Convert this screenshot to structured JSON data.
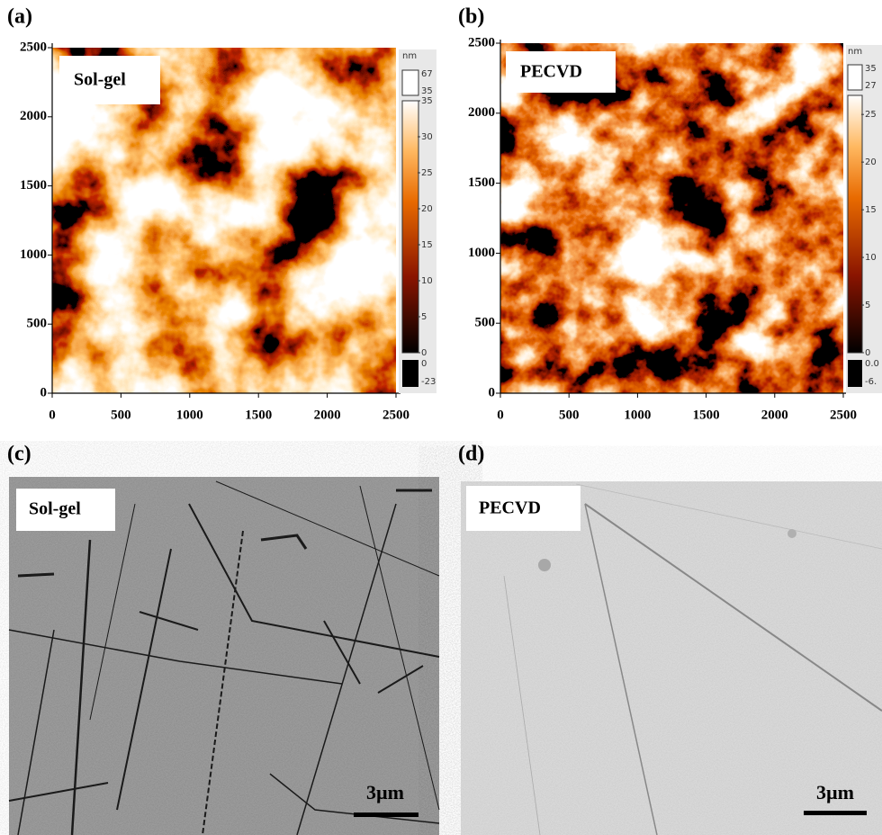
{
  "panels": [
    {
      "label": "(a)",
      "tag": "Sol-gel",
      "axis_ticks": [
        0,
        500,
        1000,
        1500,
        2000,
        2500
      ],
      "colorbar": {
        "unit": "nm",
        "over": [
          67,
          35
        ],
        "range": [
          0,
          35
        ],
        "ticks": [
          0,
          5,
          10,
          15,
          20,
          25,
          30,
          35
        ],
        "under": [
          0,
          -23
        ]
      }
    },
    {
      "label": "(b)",
      "tag": "PECVD",
      "axis_ticks": [
        0,
        500,
        1000,
        1500,
        2000,
        2500
      ],
      "colorbar": {
        "unit": "nm",
        "over": [
          35,
          27
        ],
        "range": [
          0,
          27
        ],
        "ticks": [
          0,
          5,
          10,
          15,
          20,
          25
        ],
        "under": [
          {
            "value": 0,
            "label": "0.0"
          },
          {
            "value": -6,
            "label": "-6."
          }
        ]
      }
    },
    {
      "label": "(c)",
      "tag": "Sol-gel",
      "scale_bar": "3µm"
    },
    {
      "label": "(d)",
      "tag": "PECVD",
      "scale_bar": "3µm"
    }
  ]
}
